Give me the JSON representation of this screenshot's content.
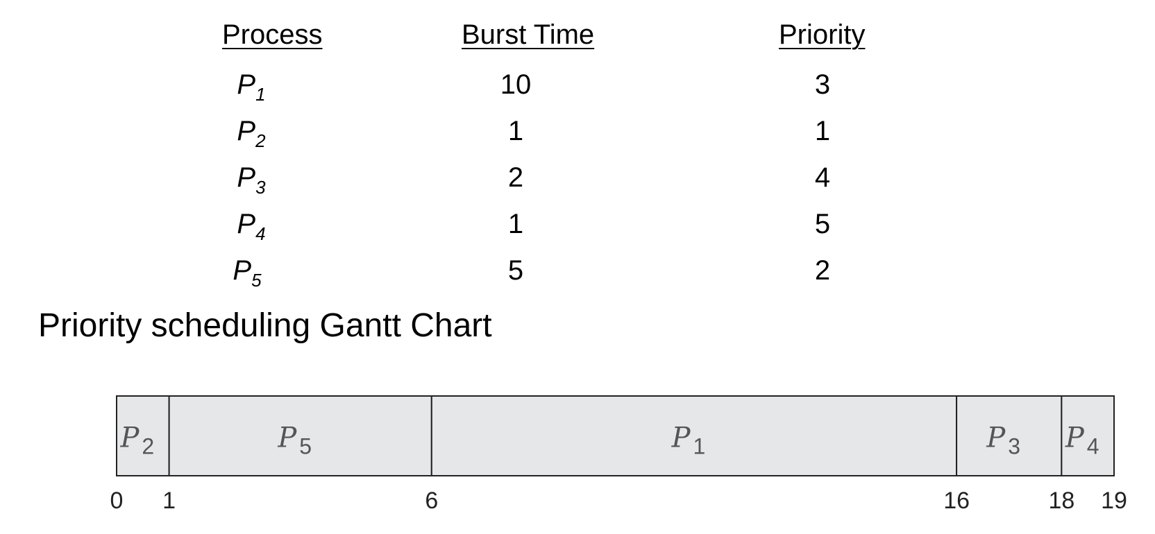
{
  "table": {
    "headers": {
      "process": "Process",
      "burst_time": "Burst Time",
      "priority": "Priority"
    },
    "rows": [
      {
        "process": "P",
        "sub": "1",
        "burst": "10",
        "priority": "3"
      },
      {
        "process": "P",
        "sub": "2",
        "burst": "1",
        "priority": "1"
      },
      {
        "process": "P",
        "sub": "3",
        "burst": "2",
        "priority": "4"
      },
      {
        "process": "P",
        "sub": "4",
        "burst": "1",
        "priority": "5"
      },
      {
        "process": "P",
        "sub": "5",
        "burst": "5",
        "priority": "2"
      }
    ]
  },
  "gantt": {
    "title": "Priority scheduling Gantt Chart",
    "segments": [
      {
        "process": "P",
        "sub": "2",
        "start": 0,
        "end": 1
      },
      {
        "process": "P",
        "sub": "5",
        "start": 1,
        "end": 6
      },
      {
        "process": "P",
        "sub": "1",
        "start": 6,
        "end": 16
      },
      {
        "process": "P",
        "sub": "3",
        "start": 16,
        "end": 18
      },
      {
        "process": "P",
        "sub": "4",
        "start": 18,
        "end": 19
      }
    ],
    "ticks": [
      "0",
      "1",
      "6",
      "16",
      "18",
      "19"
    ],
    "fill_color": "#e6e7e9",
    "stroke_color": "#222222"
  }
}
